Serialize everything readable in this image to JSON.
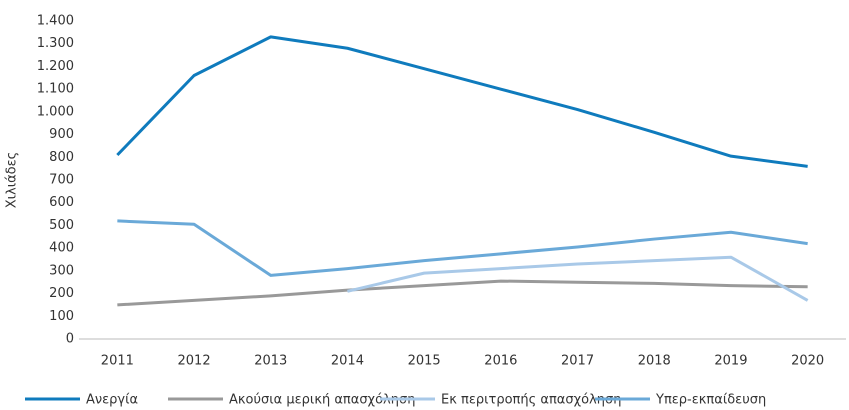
{
  "chart_data": {
    "type": "line",
    "y_label": "Χιλιάδες",
    "categories": [
      "2011",
      "2012",
      "2013",
      "2014",
      "2015",
      "2016",
      "2017",
      "2018",
      "2019",
      "2020"
    ],
    "series": [
      {
        "name": "Ανεργία",
        "color": "#0f7bbd",
        "values": [
          810,
          1160,
          1330,
          1280,
          1190,
          1100,
          1010,
          910,
          805,
          760
        ]
      },
      {
        "name": "Ακούσια μερική απασχόληση",
        "color": "#999999",
        "values": [
          150,
          170,
          190,
          215,
          235,
          255,
          250,
          245,
          235,
          230
        ]
      },
      {
        "name": "Εκ περιτροπής απασχόληση",
        "color": "#a9c9e8",
        "values": [
          null,
          null,
          null,
          210,
          290,
          310,
          330,
          345,
          360,
          170
        ]
      },
      {
        "name": "Υπερ-εκπαίδευση",
        "color": "#6aa9d8",
        "values": [
          520,
          505,
          280,
          310,
          345,
          375,
          405,
          440,
          470,
          420
        ]
      }
    ],
    "ylim": [
      0,
      1400
    ],
    "yticks": [
      0,
      100,
      200,
      300,
      400,
      500,
      600,
      700,
      800,
      900,
      {
        "value": 1000,
        "label": "1.000"
      },
      {
        "value": 1100,
        "label": "1.100"
      },
      {
        "value": 1200,
        "label": "1.200"
      },
      {
        "value": 1300,
        "label": "1.300"
      },
      {
        "value": 1400,
        "label": "1.400"
      }
    ],
    "grid": false,
    "legend": "bottom"
  }
}
